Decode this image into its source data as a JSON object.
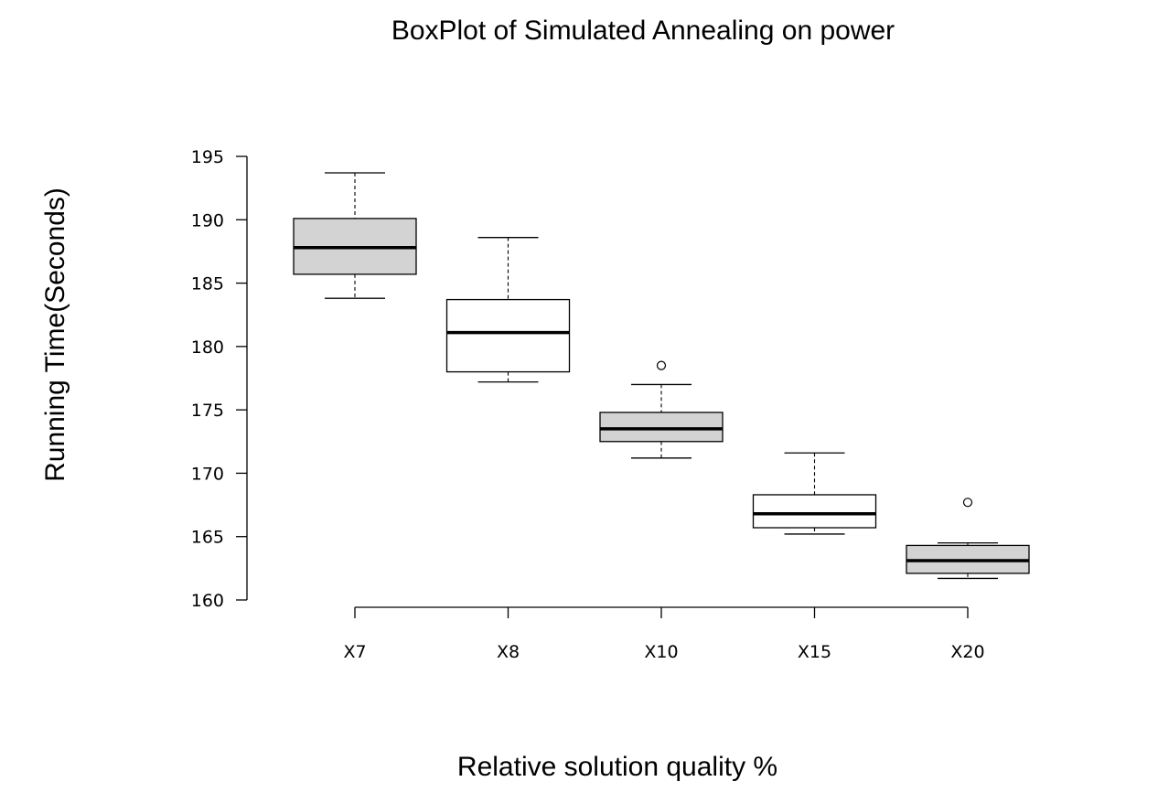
{
  "chart_data": {
    "type": "boxplot",
    "title": "BoxPlot of Simulated Annealing on power",
    "xlabel": "Relative solution quality %",
    "ylabel": "Running Time(Seconds)",
    "ylim": [
      160,
      195
    ],
    "yticks": [
      160,
      165,
      170,
      175,
      180,
      185,
      190,
      195
    ],
    "categories": [
      "X7",
      "X8",
      "X10",
      "X15",
      "X20"
    ],
    "boxes": [
      {
        "category": "X7",
        "whisker_low": 183.8,
        "q1": 185.7,
        "median": 187.8,
        "q3": 190.1,
        "whisker_high": 193.7,
        "outliers": [],
        "fill": "#d3d3d3"
      },
      {
        "category": "X8",
        "whisker_low": 177.2,
        "q1": 178.0,
        "median": 181.1,
        "q3": 183.7,
        "whisker_high": 188.6,
        "outliers": [],
        "fill": "#ffffff"
      },
      {
        "category": "X10",
        "whisker_low": 171.2,
        "q1": 172.5,
        "median": 173.5,
        "q3": 174.8,
        "whisker_high": 177.0,
        "outliers": [
          178.5
        ],
        "fill": "#d3d3d3"
      },
      {
        "category": "X15",
        "whisker_low": 165.2,
        "q1": 165.7,
        "median": 166.8,
        "q3": 168.3,
        "whisker_high": 171.6,
        "outliers": [],
        "fill": "#ffffff"
      },
      {
        "category": "X20",
        "whisker_low": 161.7,
        "q1": 162.1,
        "median": 163.1,
        "q3": 164.3,
        "whisker_high": 164.5,
        "outliers": [
          167.7
        ],
        "fill": "#d3d3d3"
      }
    ],
    "grid": false,
    "legend": "none"
  }
}
